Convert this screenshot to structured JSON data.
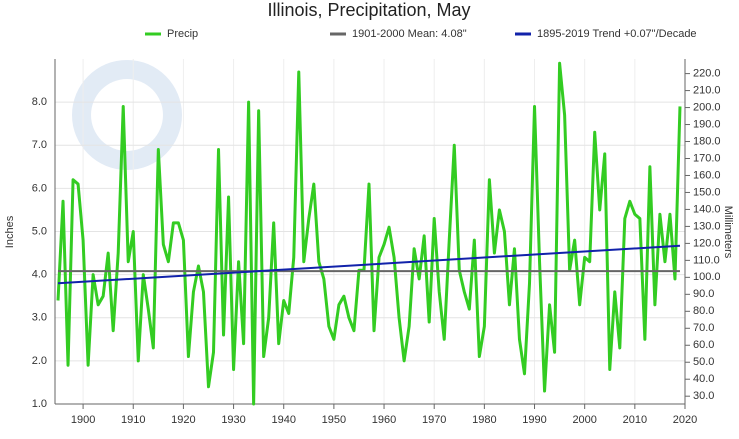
{
  "chart_data": {
    "type": "line",
    "title": "Illinois, Precipitation, May",
    "y_label": "Inches",
    "y2_label": "Millimeters",
    "x": [
      1895,
      1896,
      1897,
      1898,
      1899,
      1900,
      1901,
      1902,
      1903,
      1904,
      1905,
      1906,
      1907,
      1908,
      1909,
      1910,
      1911,
      1912,
      1913,
      1914,
      1915,
      1916,
      1917,
      1918,
      1919,
      1920,
      1921,
      1922,
      1923,
      1924,
      1925,
      1926,
      1927,
      1928,
      1929,
      1930,
      1931,
      1932,
      1933,
      1934,
      1935,
      1936,
      1937,
      1938,
      1939,
      1940,
      1941,
      1942,
      1943,
      1944,
      1945,
      1946,
      1947,
      1948,
      1949,
      1950,
      1951,
      1952,
      1953,
      1954,
      1955,
      1956,
      1957,
      1958,
      1959,
      1960,
      1961,
      1962,
      1963,
      1964,
      1965,
      1966,
      1967,
      1968,
      1969,
      1970,
      1971,
      1972,
      1973,
      1974,
      1975,
      1976,
      1977,
      1978,
      1979,
      1980,
      1981,
      1982,
      1983,
      1984,
      1985,
      1986,
      1987,
      1988,
      1989,
      1990,
      1991,
      1992,
      1993,
      1994,
      1995,
      1996,
      1997,
      1998,
      1999,
      2000,
      2001,
      2002,
      2003,
      2004,
      2005,
      2006,
      2007,
      2008,
      2009,
      2010,
      2011,
      2012,
      2013,
      2014,
      2015,
      2016,
      2017,
      2018,
      2019
    ],
    "series": [
      {
        "name": "Precip",
        "color": "#33cc22",
        "values": [
          3.4,
          5.7,
          1.9,
          6.2,
          6.1,
          4.8,
          1.9,
          4.0,
          3.3,
          3.5,
          4.5,
          2.7,
          4.5,
          7.9,
          4.3,
          5.0,
          2.0,
          4.0,
          3.2,
          2.3,
          6.9,
          4.7,
          4.3,
          5.2,
          5.2,
          4.8,
          2.1,
          3.6,
          4.2,
          3.6,
          1.4,
          2.2,
          6.9,
          2.6,
          5.8,
          1.8,
          4.3,
          2.4,
          8.0,
          1.0,
          7.8,
          2.1,
          3.0,
          5.2,
          2.4,
          3.4,
          3.1,
          4.4,
          8.7,
          4.3,
          5.3,
          6.1,
          4.3,
          3.9,
          2.8,
          2.5,
          3.3,
          3.5,
          3.0,
          2.7,
          4.1,
          4.1,
          6.1,
          2.7,
          4.4,
          4.7,
          5.1,
          4.4,
          3.0,
          2.0,
          2.8,
          4.6,
          3.9,
          4.9,
          2.9,
          5.3,
          3.6,
          2.5,
          4.8,
          7.0,
          4.1,
          3.6,
          3.2,
          4.8,
          2.1,
          2.8,
          6.2,
          4.5,
          5.5,
          5.0,
          3.3,
          4.6,
          2.5,
          1.7,
          3.8,
          7.9,
          4.3,
          1.3,
          3.3,
          2.2,
          8.9,
          7.7,
          4.1,
          4.8,
          3.3,
          4.4,
          4.3,
          7.3,
          5.5,
          6.8,
          1.8,
          3.6,
          2.3,
          5.3,
          5.7,
          5.4,
          5.3,
          2.5,
          6.5,
          3.3,
          5.4,
          4.3,
          5.4,
          3.9,
          7.9
        ]
      },
      {
        "name": "1901-2000 Mean: 4.08\"",
        "color": "#666666",
        "x": [
          1895,
          2019
        ],
        "values": [
          4.08,
          4.08
        ]
      },
      {
        "name": "1895-2019 Trend +0.07\"/Decade",
        "color": "#1122aa",
        "x": [
          1895,
          2019
        ],
        "values": [
          3.8,
          4.67
        ]
      }
    ],
    "xlim": [
      1894.4,
      2020
    ],
    "xticks": [
      1900,
      1910,
      1920,
      1930,
      1940,
      1950,
      1960,
      1970,
      1980,
      1990,
      2000,
      2010,
      2020
    ],
    "ylim": [
      1,
      9
    ],
    "yticks": [
      {
        "value": 1,
        "label": "1.0"
      },
      {
        "value": 2,
        "label": "2.0"
      },
      {
        "value": 3,
        "label": "3.0"
      },
      {
        "value": 4,
        "label": "4.0"
      },
      {
        "value": 5,
        "label": "5.0"
      },
      {
        "value": 6,
        "label": "6.0"
      },
      {
        "value": 7,
        "label": "7.0"
      },
      {
        "value": 8,
        "label": "8.0"
      }
    ],
    "y2lim": [
      25.4,
      228.6
    ],
    "y2ticks": [
      {
        "value": 30,
        "label": "30.0"
      },
      {
        "value": 40,
        "label": "40.0"
      },
      {
        "value": 50,
        "label": "50.0"
      },
      {
        "value": 60,
        "label": "60.0"
      },
      {
        "value": 70,
        "label": "70.0"
      },
      {
        "value": 80,
        "label": "80.0"
      },
      {
        "value": 90,
        "label": "90.0"
      },
      {
        "value": 100,
        "label": "100.0"
      },
      {
        "value": 110,
        "label": "110.0"
      },
      {
        "value": 120,
        "label": "120.0"
      },
      {
        "value": 130,
        "label": "130.0"
      },
      {
        "value": 140,
        "label": "140.0"
      },
      {
        "value": 150,
        "label": "150.0"
      },
      {
        "value": 160,
        "label": "160.0"
      },
      {
        "value": 170,
        "label": "170.0"
      },
      {
        "value": 180,
        "label": "180.0"
      },
      {
        "value": 190,
        "label": "190.0"
      },
      {
        "value": 200,
        "label": "200.0"
      },
      {
        "value": 210,
        "label": "210.0"
      },
      {
        "value": 220,
        "label": "220.0"
      }
    ],
    "grid": true
  }
}
